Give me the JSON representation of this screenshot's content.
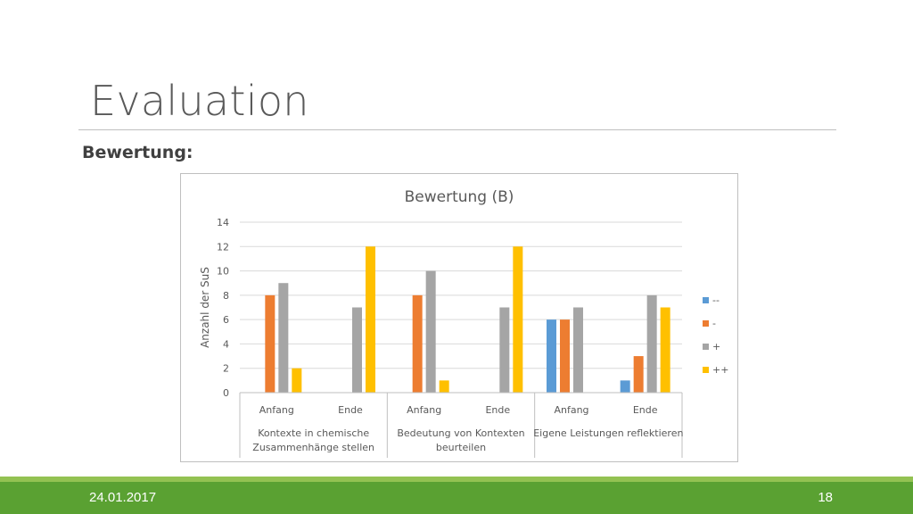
{
  "slide": {
    "title": "Evaluation",
    "subtitle": "Bewertung:"
  },
  "footer": {
    "date": "24.01.2017",
    "page": "18"
  },
  "chart_data": {
    "type": "bar",
    "title": "Bewertung (B)",
    "ylabel": "Anzahl der SuS",
    "xlabel": "",
    "ylim": [
      0,
      14
    ],
    "yticks": [
      "0",
      "2",
      "4",
      "6",
      "8",
      "10",
      "12",
      "14"
    ],
    "grid": true,
    "legend_position": "right",
    "groups": [
      {
        "label": "Kontexte in chemische Zusammenhänge stellen",
        "lines": [
          "Kontexte in chemische",
          "Zusammenhänge stellen"
        ]
      },
      {
        "label": "Bedeutung von Kontexten beurteilen",
        "lines": [
          "Bedeutung von Kontexten",
          "beurteilen"
        ]
      },
      {
        "label": "Eigene Leistungen reflektieren",
        "lines": [
          "Eigene Leistungen reflektieren"
        ]
      }
    ],
    "categories": [
      "Anfang",
      "Ende",
      "Anfang",
      "Ende",
      "Anfang",
      "Ende"
    ],
    "series": [
      {
        "name": "--",
        "color": "#5b9bd5",
        "values": [
          0,
          0,
          0,
          0,
          6,
          1
        ]
      },
      {
        "name": "-",
        "color": "#ed7d31",
        "values": [
          8,
          0,
          8,
          0,
          6,
          3
        ]
      },
      {
        "name": "+",
        "color": "#a5a5a5",
        "values": [
          9,
          7,
          10,
          7,
          7,
          8
        ]
      },
      {
        "name": "++",
        "color": "#ffc000",
        "values": [
          2,
          12,
          1,
          12,
          0,
          7
        ]
      }
    ]
  }
}
